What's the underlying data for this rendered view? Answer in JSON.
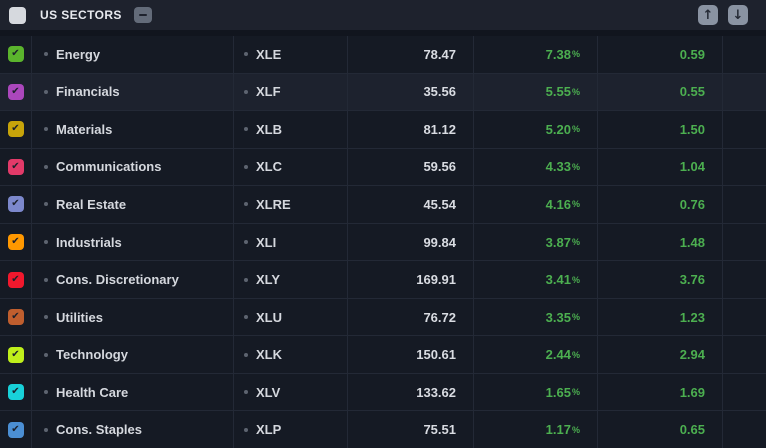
{
  "header": {
    "title": "US SECTORS"
  },
  "icons": {
    "check": "✔",
    "up_arrow": "↑",
    "down_arrow": "↓"
  },
  "positive_color": "#4caf50",
  "pct_suffix": "%",
  "rows": [
    {
      "name": "Energy",
      "ticker": "XLE",
      "last": "78.47",
      "change_pct": "7.38",
      "change": "0.59",
      "color": "#5bb42d",
      "selected": false
    },
    {
      "name": "Financials",
      "ticker": "XLF",
      "last": "35.56",
      "change_pct": "5.55",
      "change": "0.55",
      "color": "#ab47bc",
      "selected": true
    },
    {
      "name": "Materials",
      "ticker": "XLB",
      "last": "81.12",
      "change_pct": "5.20",
      "change": "1.50",
      "color": "#c7a40a",
      "selected": false
    },
    {
      "name": "Communications",
      "ticker": "XLC",
      "last": "59.56",
      "change_pct": "4.33",
      "change": "1.04",
      "color": "#e23a69",
      "selected": false
    },
    {
      "name": "Real Estate",
      "ticker": "XLRE",
      "last": "45.54",
      "change_pct": "4.16",
      "change": "0.76",
      "color": "#7c88cc",
      "selected": false
    },
    {
      "name": "Industrials",
      "ticker": "XLI",
      "last": "99.84",
      "change_pct": "3.87",
      "change": "1.48",
      "color": "#ff9800",
      "selected": false
    },
    {
      "name": "Cons. Discretionary",
      "ticker": "XLY",
      "last": "169.91",
      "change_pct": "3.41",
      "change": "3.76",
      "color": "#f1182d",
      "selected": false
    },
    {
      "name": "Utilities",
      "ticker": "XLU",
      "last": "76.72",
      "change_pct": "3.35",
      "change": "1.23",
      "color": "#bf5e2e",
      "selected": false
    },
    {
      "name": "Technology",
      "ticker": "XLK",
      "last": "150.61",
      "change_pct": "2.44",
      "change": "2.94",
      "color": "#bfef1b",
      "selected": false
    },
    {
      "name": "Health Care",
      "ticker": "XLV",
      "last": "133.62",
      "change_pct": "1.65",
      "change": "1.69",
      "color": "#18d1d9",
      "selected": false
    },
    {
      "name": "Cons. Staples",
      "ticker": "XLP",
      "last": "75.51",
      "change_pct": "1.17",
      "change": "0.65",
      "color": "#4b8fd4",
      "selected": false
    }
  ]
}
